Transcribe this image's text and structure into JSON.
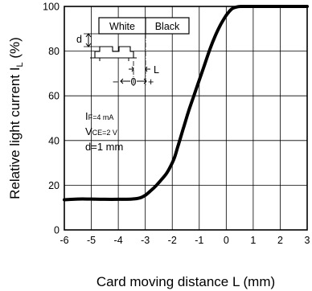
{
  "chart_data": {
    "type": "line",
    "title": "",
    "xlabel": "Card moving distance L (mm)",
    "ylabel_main": "Relative light current  I",
    "ylabel_sub": "L",
    "ylabel_unit": " (%)",
    "xlim": [
      -6,
      3
    ],
    "ylim": [
      0,
      100
    ],
    "x_ticks": [
      -6,
      -5,
      -4,
      -3,
      -2,
      -1,
      0,
      1,
      2,
      3
    ],
    "y_ticks": [
      0,
      20,
      40,
      60,
      80,
      100
    ],
    "grid": true,
    "series": [
      {
        "x": [
          -6,
          -5.5,
          -5,
          -4.5,
          -4,
          -3.5,
          -3.2,
          -3,
          -2.8,
          -2.6,
          -2.4,
          -2.2,
          -2.0,
          -1.9,
          -1.8,
          -1.7,
          -1.6,
          -1.5,
          -1.4,
          -1.2,
          -1.0,
          -0.8,
          -0.6,
          -0.4,
          -0.2,
          0.0,
          0.2,
          0.4,
          0.6,
          1,
          2,
          3
        ],
        "y": [
          13.5,
          13.8,
          13.8,
          13.7,
          13.7,
          13.8,
          14.3,
          15.5,
          17.5,
          19.8,
          22.5,
          25.5,
          30,
          33,
          37,
          41,
          45,
          49,
          53,
          60,
          67,
          74,
          81,
          87,
          92,
          96,
          98.8,
          99.8,
          100,
          100,
          100,
          100
        ]
      }
    ],
    "conditions": [
      "F=4 mA",
      "CE=2 V",
      "d=1 mm"
    ],
    "conditions_prefix": [
      "I",
      "V",
      ""
    ],
    "inset": {
      "white_label": "White",
      "black_label": "Black",
      "d_label": "d",
      "l_label": "L",
      "zero_marker": "0",
      "minus": "−",
      "plus": "+"
    }
  }
}
